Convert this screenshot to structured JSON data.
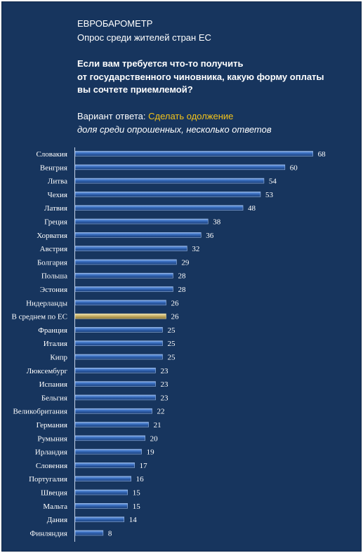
{
  "header": {
    "source": "ЕВРОБАРОМЕТР",
    "subtitle": "Опрос среди жителей стран ЕС",
    "question_lines": [
      "Если вам требуется что-то получить",
      "от государственного чиновника, какую форму оплаты",
      "вы сочтете приемлемой?"
    ],
    "answer_prefix": "Вариант ответа:",
    "answer_value": "Сделать одолжение",
    "note": "доля среди опрошенных, несколько ответов"
  },
  "colors": {
    "background": "#17355e",
    "bar": "#2a5da8",
    "highlight_bar": "#c9b36a",
    "answer_highlight": "#f3c31b"
  },
  "chart_data": {
    "type": "bar",
    "orientation": "horizontal",
    "categories": [
      "Словакия",
      "Венгрия",
      "Литва",
      "Чехия",
      "Латвия",
      "Греция",
      "Хорватия",
      "Австрия",
      "Болгария",
      "Польша",
      "Эстония",
      "Нидерланды",
      "В среднем по ЕС",
      "Франция",
      "Италия",
      "Кипр",
      "Люксембург",
      "Испания",
      "Бельгия",
      "Великобритания",
      "Германия",
      "Румыния",
      "Ирландия",
      "Словения",
      "Португалия",
      "Швеция",
      "Мальта",
      "Дания",
      "Финляндия"
    ],
    "values": [
      68,
      60,
      54,
      53,
      48,
      38,
      36,
      32,
      29,
      28,
      28,
      26,
      26,
      25,
      25,
      25,
      23,
      23,
      23,
      22,
      21,
      20,
      19,
      17,
      16,
      15,
      15,
      14,
      8
    ],
    "highlight": "В среднем по ЕС",
    "xlim": [
      0,
      70
    ]
  }
}
